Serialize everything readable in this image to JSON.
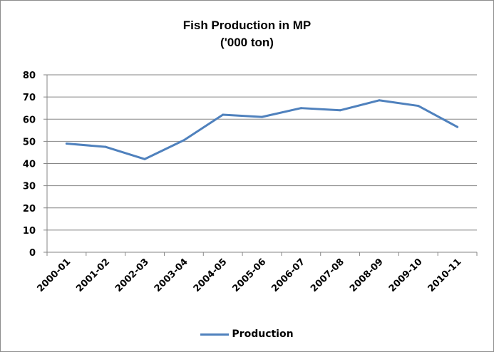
{
  "chart_data": {
    "type": "line",
    "title": "Fish Production in MP",
    "subtitle": "('000 ton)",
    "xlabel": "",
    "ylabel": "",
    "categories": [
      "2000-01",
      "2001-02",
      "2002-03",
      "2003-04",
      "2004-05",
      "2005-06",
      "2006-07",
      "2007-08",
      "2008-09",
      "2009-10",
      "2010-11"
    ],
    "series": [
      {
        "name": "Production",
        "values": [
          49,
          47.5,
          42,
          50.5,
          62,
          61,
          65,
          64,
          68.5,
          66,
          56.5
        ],
        "color": "#4f81bd"
      }
    ],
    "ylim": [
      0,
      80
    ],
    "yticks": [
      0,
      10,
      20,
      30,
      40,
      50,
      60,
      70,
      80
    ],
    "grid": true,
    "legend": "bottom"
  }
}
